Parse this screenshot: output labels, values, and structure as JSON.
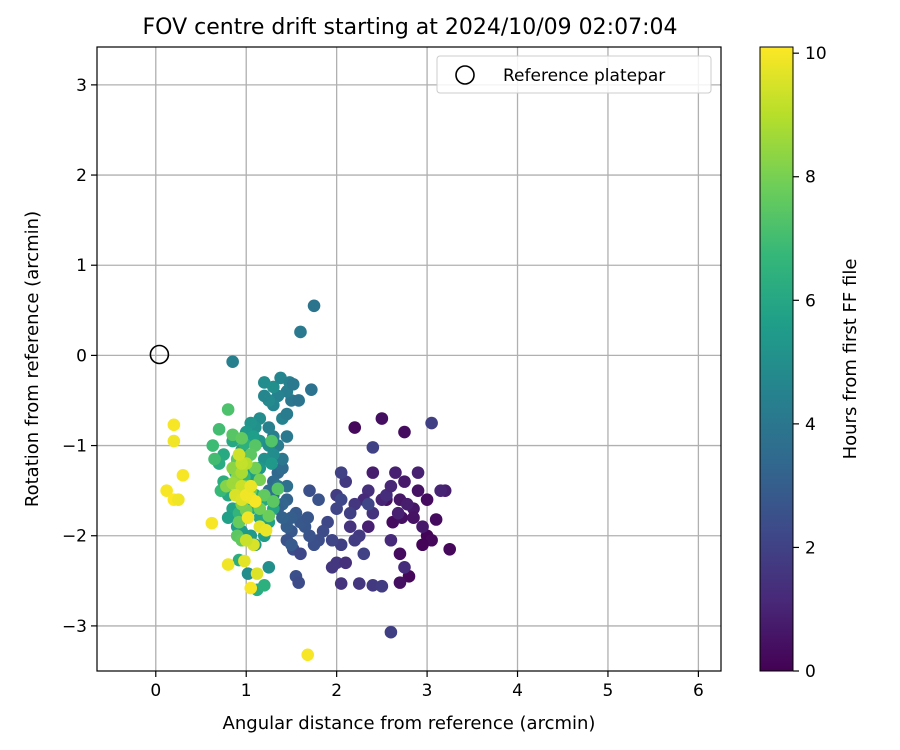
{
  "chart_data": {
    "type": "scatter",
    "title": "FOV centre drift starting at 2024/10/09 02:07:04",
    "xlabel": "Angular distance from reference (arcmin)",
    "ylabel": "Rotation from reference (arcmin)",
    "xlim": [
      -0.65,
      6.25
    ],
    "ylim": [
      -3.5,
      3.42
    ],
    "xticks": [
      "0",
      "1",
      "2",
      "3",
      "4",
      "5",
      "6"
    ],
    "yticks": [
      "3",
      "2",
      "1",
      "0",
      "−1",
      "−2",
      "−3"
    ],
    "grid": true,
    "legend": {
      "placement": "top-right",
      "entries": [
        "Reference platepar"
      ]
    },
    "reference_point": {
      "x": 0,
      "y": 0
    },
    "colorbar": {
      "label": "Hours from first FF file",
      "range": [
        0,
        10.1
      ],
      "ticks": [
        "0",
        "2",
        "4",
        "6",
        "8",
        "10"
      ],
      "colormap": "viridis"
    },
    "colormap_colors": [
      "#440154",
      "#482878",
      "#3e4989",
      "#31688e",
      "#26828e",
      "#1f9e89",
      "#35b779",
      "#6ece58",
      "#b5de2b",
      "#fde725"
    ],
    "series": [
      {
        "points": [
          [
            3.0,
            -2.0,
            0.1
          ],
          [
            3.05,
            -2.05,
            0.2
          ],
          [
            2.95,
            -2.1,
            0.1
          ],
          [
            3.25,
            -2.15,
            0.2
          ],
          [
            3.1,
            -1.82,
            0.3
          ],
          [
            2.7,
            -2.2,
            0.3
          ],
          [
            2.8,
            -2.45,
            0.2
          ],
          [
            2.7,
            -2.52,
            0.4
          ],
          [
            2.55,
            -1.6,
            0.5
          ],
          [
            2.62,
            -1.85,
            0.3
          ],
          [
            2.72,
            -1.8,
            0.4
          ],
          [
            2.85,
            -1.7,
            0.6
          ],
          [
            2.9,
            -1.5,
            0.5
          ],
          [
            3.0,
            -1.6,
            0.3
          ],
          [
            2.2,
            -0.8,
            0.2
          ],
          [
            2.5,
            -0.7,
            0.4
          ],
          [
            2.75,
            -0.85,
            0.3
          ],
          [
            3.2,
            -1.5,
            0.8
          ],
          [
            3.15,
            -1.5,
            1.0
          ],
          [
            3.05,
            -0.75,
            1.9
          ],
          [
            2.75,
            -1.4,
            0.7
          ],
          [
            2.65,
            -1.3,
            0.9
          ],
          [
            2.4,
            -1.3,
            0.8
          ],
          [
            2.5,
            -1.6,
            1.0
          ],
          [
            2.35,
            -1.9,
            0.9
          ],
          [
            2.6,
            -2.05,
            1.2
          ],
          [
            2.75,
            -2.35,
            1.3
          ],
          [
            2.55,
            -1.55,
            1.3
          ],
          [
            2.35,
            -1.5,
            1.4
          ],
          [
            2.4,
            -1.75,
            1.5
          ],
          [
            2.3,
            -1.6,
            1.2
          ],
          [
            2.2,
            -1.65,
            1.6
          ],
          [
            2.1,
            -1.4,
            1.7
          ],
          [
            2.05,
            -1.3,
            2.0
          ],
          [
            2.0,
            -1.55,
            1.8
          ],
          [
            2.15,
            -1.9,
            1.5
          ],
          [
            2.25,
            -2.0,
            1.7
          ],
          [
            2.05,
            -2.1,
            1.9
          ],
          [
            1.95,
            -2.05,
            2.1
          ],
          [
            2.3,
            -2.2,
            2.0
          ],
          [
            2.0,
            -2.3,
            1.6
          ],
          [
            2.1,
            -2.3,
            1.4
          ],
          [
            1.95,
            -2.35,
            1.6
          ],
          [
            2.05,
            -2.53,
            1.5
          ],
          [
            2.25,
            -2.53,
            1.6
          ],
          [
            2.4,
            -2.55,
            1.7
          ],
          [
            2.5,
            -2.56,
            1.8
          ],
          [
            2.6,
            -3.07,
            1.9
          ],
          [
            2.2,
            -2.05,
            1.8
          ],
          [
            2.15,
            -1.75,
            1.9
          ],
          [
            2.0,
            -1.7,
            2.1
          ],
          [
            1.9,
            -1.85,
            2.2
          ],
          [
            1.85,
            -1.95,
            2.3
          ],
          [
            1.8,
            -2.05,
            2.4
          ],
          [
            1.75,
            -2.1,
            2.5
          ],
          [
            1.7,
            -2.0,
            2.6
          ],
          [
            1.65,
            -1.9,
            2.7
          ],
          [
            1.6,
            -1.85,
            2.8
          ],
          [
            1.7,
            -1.5,
            2.5
          ],
          [
            1.8,
            -1.6,
            2.6
          ],
          [
            1.55,
            -1.75,
            2.9
          ],
          [
            1.5,
            -1.8,
            3.0
          ],
          [
            1.5,
            -1.95,
            2.8
          ],
          [
            1.45,
            -2.05,
            2.6
          ],
          [
            1.52,
            -2.15,
            2.4
          ],
          [
            1.6,
            -2.2,
            2.2
          ],
          [
            1.55,
            -2.45,
            2.5
          ],
          [
            1.58,
            -2.52,
            2.3
          ],
          [
            1.45,
            -1.6,
            3.2
          ],
          [
            1.4,
            -1.65,
            3.3
          ],
          [
            1.35,
            -1.7,
            3.1
          ],
          [
            1.5,
            -2.1,
            2.9
          ],
          [
            1.45,
            -1.9,
            3.0
          ],
          [
            1.4,
            -1.8,
            3.2
          ],
          [
            1.68,
            -1.8,
            2.7
          ],
          [
            2.05,
            -1.6,
            2.2
          ],
          [
            2.35,
            -1.65,
            2.1
          ],
          [
            2.4,
            -1.02,
            2.0
          ],
          [
            2.6,
            -1.45,
            1.1
          ],
          [
            2.7,
            -1.6,
            0.6
          ],
          [
            2.85,
            -1.8,
            0.5
          ],
          [
            2.95,
            -1.9,
            0.7
          ],
          [
            2.78,
            -1.65,
            0.8
          ],
          [
            2.68,
            -1.75,
            0.9
          ],
          [
            2.9,
            -1.3,
            0.9
          ],
          [
            1.35,
            -1.3,
            3.4
          ],
          [
            1.4,
            -1.25,
            3.6
          ],
          [
            1.3,
            -1.4,
            3.5
          ],
          [
            1.25,
            -1.5,
            3.7
          ],
          [
            1.3,
            -1.55,
            3.8
          ],
          [
            1.35,
            -1.45,
            3.9
          ],
          [
            1.45,
            -1.45,
            3.7
          ],
          [
            1.4,
            -1.15,
            4.0
          ],
          [
            1.45,
            -0.9,
            4.1
          ],
          [
            1.35,
            -1.0,
            4.2
          ],
          [
            1.3,
            -0.9,
            4.3
          ],
          [
            1.25,
            -0.8,
            4.4
          ],
          [
            1.4,
            -0.7,
            4.5
          ],
          [
            1.45,
            -0.65,
            4.2
          ],
          [
            1.5,
            -0.5,
            4.0
          ],
          [
            1.45,
            -0.4,
            4.3
          ],
          [
            1.35,
            -0.45,
            4.5
          ],
          [
            1.3,
            -0.55,
            4.6
          ],
          [
            1.25,
            -0.5,
            4.8
          ],
          [
            1.2,
            -0.45,
            4.7
          ],
          [
            1.2,
            -0.3,
            4.9
          ],
          [
            1.3,
            -0.35,
            5.0
          ],
          [
            1.38,
            -0.25,
            4.6
          ],
          [
            1.48,
            -0.3,
            4.4
          ],
          [
            1.52,
            -0.32,
            4.1
          ],
          [
            1.58,
            -0.5,
            3.9
          ],
          [
            1.72,
            -0.38,
            3.8
          ],
          [
            1.75,
            0.55,
            3.9
          ],
          [
            1.6,
            0.26,
            4.1
          ],
          [
            0.85,
            -0.07,
            4.4
          ],
          [
            1.15,
            -0.7,
            4.9
          ],
          [
            1.1,
            -0.8,
            5.1
          ],
          [
            1.05,
            -0.75,
            5.2
          ],
          [
            1.0,
            -0.85,
            5.4
          ],
          [
            1.15,
            -0.95,
            5.2
          ],
          [
            1.25,
            -1.0,
            5.0
          ],
          [
            1.3,
            -1.1,
            4.9
          ],
          [
            1.2,
            -1.15,
            5.1
          ],
          [
            1.15,
            -1.25,
            5.3
          ],
          [
            1.1,
            -1.35,
            5.5
          ],
          [
            1.05,
            -1.3,
            5.6
          ],
          [
            1.0,
            -1.15,
            5.7
          ],
          [
            0.95,
            -1.05,
            5.8
          ],
          [
            0.85,
            -0.95,
            6.0
          ],
          [
            0.9,
            -1.2,
            5.9
          ],
          [
            0.75,
            -1.1,
            6.1
          ],
          [
            0.7,
            -1.2,
            6.2
          ],
          [
            0.75,
            -1.4,
            6.3
          ],
          [
            0.8,
            -1.55,
            6.0
          ],
          [
            0.85,
            -1.7,
            5.8
          ],
          [
            0.8,
            -1.8,
            5.7
          ],
          [
            0.9,
            -1.9,
            5.6
          ],
          [
            0.95,
            -1.95,
            5.5
          ],
          [
            1.05,
            -2.0,
            5.4
          ],
          [
            1.1,
            -2.1,
            5.2
          ],
          [
            1.2,
            -2.0,
            5.6
          ],
          [
            1.25,
            -1.85,
            5.7
          ],
          [
            1.15,
            -1.8,
            5.9
          ],
          [
            1.05,
            -1.7,
            6.0
          ],
          [
            1.0,
            -1.6,
            6.1
          ],
          [
            0.95,
            -1.5,
            6.2
          ],
          [
            1.1,
            -1.55,
            6.3
          ],
          [
            1.2,
            -1.6,
            6.1
          ],
          [
            1.3,
            -1.7,
            5.9
          ],
          [
            1.28,
            -1.2,
            5.4
          ],
          [
            1.08,
            -0.9,
            5.6
          ],
          [
            0.98,
            -0.98,
            6.4
          ],
          [
            0.88,
            -1.3,
            6.5
          ],
          [
            0.92,
            -1.75,
            6.6
          ],
          [
            1.02,
            -2.42,
            4.9
          ],
          [
            1.25,
            -2.35,
            5.0
          ],
          [
            1.12,
            -2.6,
            6.2
          ],
          [
            1.2,
            -2.55,
            6.4
          ],
          [
            0.92,
            -2.27,
            6.3
          ],
          [
            0.98,
            -1.35,
            6.7
          ],
          [
            0.72,
            -1.5,
            6.8
          ],
          [
            0.63,
            -1.0,
            6.9
          ],
          [
            0.65,
            -1.15,
            7.0
          ],
          [
            0.7,
            -0.82,
            7.0
          ],
          [
            0.8,
            -0.6,
            7.2
          ],
          [
            0.85,
            -0.88,
            7.4
          ],
          [
            0.9,
            -1.15,
            7.5
          ],
          [
            0.95,
            -1.3,
            7.6
          ],
          [
            1.0,
            -1.45,
            7.7
          ],
          [
            1.05,
            -1.5,
            7.8
          ],
          [
            1.1,
            -1.25,
            7.9
          ],
          [
            1.15,
            -1.38,
            8.0
          ],
          [
            1.2,
            -1.55,
            7.6
          ],
          [
            1.3,
            -1.62,
            7.5
          ],
          [
            1.35,
            -1.48,
            7.4
          ],
          [
            1.28,
            -0.95,
            7.3
          ],
          [
            1.1,
            -1.0,
            7.4
          ],
          [
            1.05,
            -1.1,
            7.5
          ],
          [
            0.95,
            -0.92,
            7.6
          ],
          [
            0.9,
            -2.0,
            7.5
          ],
          [
            0.95,
            -2.05,
            7.6
          ],
          [
            0.92,
            -1.85,
            7.7
          ],
          [
            1.25,
            -1.78,
            7.8
          ],
          [
            1.15,
            -1.7,
            7.9
          ],
          [
            1.0,
            -1.72,
            8.0
          ],
          [
            0.95,
            -1.65,
            8.1
          ],
          [
            0.78,
            -1.45,
            8.2
          ],
          [
            0.85,
            -1.25,
            8.3
          ],
          [
            0.9,
            -1.35,
            8.4
          ],
          [
            0.85,
            -1.42,
            8.6
          ],
          [
            0.95,
            -1.3,
            8.8
          ],
          [
            1.0,
            -1.2,
            9.0
          ],
          [
            0.95,
            -1.2,
            9.2
          ],
          [
            0.92,
            -1.1,
            9.4
          ],
          [
            0.95,
            -1.45,
            9.3
          ],
          [
            0.88,
            -1.55,
            9.5
          ],
          [
            0.95,
            -1.6,
            9.6
          ],
          [
            1.05,
            -1.58,
            9.8
          ],
          [
            1.02,
            -1.8,
            9.9
          ],
          [
            1.15,
            -1.9,
            9.7
          ],
          [
            1.08,
            -2.1,
            9.5
          ],
          [
            1.0,
            -2.05,
            9.3
          ],
          [
            1.12,
            -2.42,
            9.6
          ],
          [
            0.98,
            -2.28,
            9.7
          ],
          [
            0.8,
            -2.32,
            9.9
          ],
          [
            1.05,
            -2.58,
            10.0
          ],
          [
            0.2,
            -0.77,
            10.0
          ],
          [
            0.2,
            -0.95,
            9.9
          ],
          [
            0.3,
            -1.33,
            10.0
          ],
          [
            0.12,
            -1.5,
            10.0
          ],
          [
            0.2,
            -1.6,
            10.1
          ],
          [
            0.25,
            -1.6,
            9.9
          ],
          [
            0.62,
            -1.86,
            10.0
          ],
          [
            1.68,
            -3.32,
            10.0
          ],
          [
            1.22,
            -1.94,
            9.8
          ],
          [
            1.1,
            -1.62,
            10.0
          ],
          [
            1.0,
            -1.55,
            9.9
          ],
          [
            1.05,
            -1.45,
            9.8
          ]
        ]
      }
    ]
  }
}
